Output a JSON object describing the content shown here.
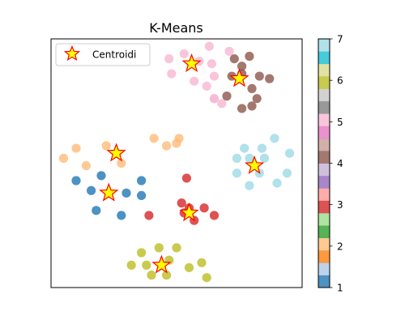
{
  "chart_data": {
    "type": "scatter",
    "title": "K-Means",
    "xlabel": "",
    "ylabel": "",
    "x_ticks_shown": false,
    "y_ticks_shown": false,
    "xlim": [
      0,
      10
    ],
    "ylim": [
      0,
      10
    ],
    "grid": false,
    "legend": {
      "position": "top-left",
      "entries": [
        "Centroidi"
      ]
    },
    "colorbar": {
      "ticks": [
        "1",
        "2",
        "3",
        "4",
        "5",
        "6",
        "7"
      ],
      "range": [
        1,
        7
      ],
      "colormap": "tab20",
      "segments": [
        "#1f77b4",
        "#aec7e8",
        "#ff7f0e",
        "#ffbb78",
        "#2ca02c",
        "#98df8a",
        "#d62728",
        "#ff9896",
        "#9467bd",
        "#c5b0d5",
        "#8c564b",
        "#c49c94",
        "#e377c2",
        "#f7b6d2",
        "#7f7f7f",
        "#c7c7c7",
        "#bcbd22",
        "#dbdb8d",
        "#17becf",
        "#9edae5"
      ]
    },
    "cluster_colors": {
      "0": "#1f77b4",
      "1": "#ffbb78",
      "2": "#d62728",
      "3": "#9edae5",
      "4": "#bcbd22",
      "5": "#f7b6d2",
      "6": "#8c564b"
    },
    "series": [
      {
        "cluster": 0,
        "points": [
          [
            1.0,
            4.3
          ],
          [
            2.0,
            4.5
          ],
          [
            1.6,
            3.9
          ],
          [
            3.6,
            4.3
          ],
          [
            3.6,
            3.7
          ],
          [
            3.0,
            3.8
          ],
          [
            1.8,
            3.1
          ],
          [
            2.8,
            2.9
          ]
        ]
      },
      {
        "cluster": 1,
        "points": [
          [
            0.5,
            5.2
          ],
          [
            1.0,
            5.6
          ],
          [
            1.4,
            4.9
          ],
          [
            2.2,
            5.7
          ],
          [
            2.8,
            5.0
          ],
          [
            4.1,
            6.0
          ],
          [
            4.6,
            5.7
          ],
          [
            5.0,
            5.8
          ],
          [
            5.1,
            6.0
          ]
        ]
      },
      {
        "cluster": 2,
        "points": [
          [
            5.4,
            4.4
          ],
          [
            5.2,
            3.4
          ],
          [
            5.3,
            3.0
          ],
          [
            5.7,
            2.7
          ],
          [
            6.1,
            3.2
          ],
          [
            6.5,
            2.9
          ],
          [
            3.9,
            2.9
          ],
          [
            5.5,
            3.2
          ]
        ]
      },
      {
        "cluster": 3,
        "points": [
          [
            7.7,
            5.6
          ],
          [
            8.4,
            5.6
          ],
          [
            8.9,
            6.0
          ],
          [
            7.4,
            5.2
          ],
          [
            7.9,
            5.2
          ],
          [
            8.5,
            5.2
          ],
          [
            9.5,
            5.4
          ],
          [
            9.4,
            4.6
          ],
          [
            7.4,
            4.6
          ],
          [
            8.3,
            4.6
          ],
          [
            9.0,
            4.2
          ],
          [
            7.9,
            4.1
          ]
        ]
      },
      {
        "cluster": 4,
        "points": [
          [
            3.6,
            1.4
          ],
          [
            4.3,
            1.6
          ],
          [
            4.7,
            1.1
          ],
          [
            5.0,
            1.6
          ],
          [
            5.5,
            0.8
          ],
          [
            3.2,
            0.9
          ],
          [
            3.8,
            0.9
          ],
          [
            4.0,
            0.5
          ],
          [
            4.6,
            0.5
          ],
          [
            6.0,
            1.0
          ],
          [
            6.2,
            0.4
          ]
        ]
      },
      {
        "cluster": 5,
        "points": [
          [
            4.7,
            9.2
          ],
          [
            5.3,
            9.4
          ],
          [
            6.3,
            9.7
          ],
          [
            7.1,
            9.5
          ],
          [
            5.9,
            9.1
          ],
          [
            6.4,
            9.0
          ],
          [
            4.8,
            8.6
          ],
          [
            5.7,
            8.3
          ],
          [
            6.5,
            8.5
          ],
          [
            6.2,
            8.1
          ],
          [
            6.5,
            7.6
          ],
          [
            6.5,
            7.6
          ],
          [
            6.8,
            7.4
          ]
        ]
      },
      {
        "cluster": 6,
        "points": [
          [
            7.3,
            9.2
          ],
          [
            7.9,
            9.3
          ],
          [
            7.6,
            8.9
          ],
          [
            7.2,
            8.5
          ],
          [
            7.6,
            8.6
          ],
          [
            8.3,
            8.5
          ],
          [
            8.0,
            8.0
          ],
          [
            8.7,
            8.4
          ],
          [
            8.2,
            7.6
          ],
          [
            7.0,
            7.7
          ],
          [
            7.6,
            7.2
          ],
          [
            8.0,
            7.3
          ]
        ]
      }
    ],
    "centroids": [
      [
        2.6,
        5.4
      ],
      [
        2.3,
        3.8
      ],
      [
        5.6,
        9.0
      ],
      [
        7.5,
        8.4
      ],
      [
        5.5,
        3.0
      ],
      [
        8.1,
        4.9
      ],
      [
        4.4,
        0.9
      ]
    ],
    "centroid_style": {
      "fill": "#ffff00",
      "edge": "#ff0000"
    }
  }
}
